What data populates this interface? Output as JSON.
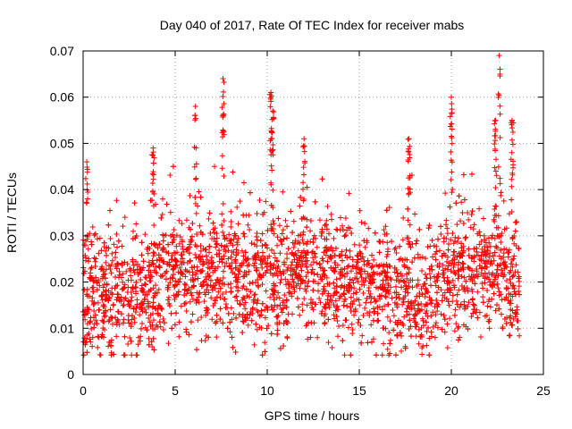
{
  "chart_data": {
    "type": "scatter",
    "title": "Day 040 of 2017, Rate Of TEC Index for receiver mabs",
    "xlabel": "GPS time / hours",
    "ylabel": "ROTI / TECUs",
    "xlim": [
      0,
      25
    ],
    "ylim": [
      0,
      0.07
    ],
    "xticks": [
      "0",
      "5",
      "10",
      "15",
      "20",
      "25"
    ],
    "xtick_values": [
      0,
      5,
      10,
      15,
      20,
      25
    ],
    "yticks": [
      "0",
      "0.01",
      "0.02",
      "0.03",
      "0.04",
      "0.05",
      "0.06",
      "0.07"
    ],
    "ytick_values": [
      0,
      0.01,
      0.02,
      0.03,
      0.04,
      0.05,
      0.06,
      0.07
    ],
    "grid": true,
    "marker": "+",
    "color": "#ff0000",
    "x_coverage": [
      0,
      23.7
    ],
    "typical_range": [
      0.007,
      0.035
    ],
    "trend": [
      {
        "x": 0.5,
        "y": 0.017
      },
      {
        "x": 2.5,
        "y": 0.016
      },
      {
        "x": 4.5,
        "y": 0.022
      },
      {
        "x": 6.5,
        "y": 0.021
      },
      {
        "x": 8.5,
        "y": 0.022
      },
      {
        "x": 10.5,
        "y": 0.02
      },
      {
        "x": 12.5,
        "y": 0.023
      },
      {
        "x": 14.5,
        "y": 0.02
      },
      {
        "x": 16.5,
        "y": 0.018
      },
      {
        "x": 18.5,
        "y": 0.017
      },
      {
        "x": 20.5,
        "y": 0.021
      },
      {
        "x": 22.5,
        "y": 0.024
      },
      {
        "x": 23.5,
        "y": 0.018
      }
    ],
    "peaks": [
      {
        "x": 0.2,
        "y": 0.046
      },
      {
        "x": 3.8,
        "y": 0.049
      },
      {
        "x": 6.1,
        "y": 0.058
      },
      {
        "x": 7.6,
        "y": 0.064
      },
      {
        "x": 10.2,
        "y": 0.061
      },
      {
        "x": 10.3,
        "y": 0.057
      },
      {
        "x": 12.0,
        "y": 0.051
      },
      {
        "x": 17.7,
        "y": 0.051
      },
      {
        "x": 20.0,
        "y": 0.06
      },
      {
        "x": 22.4,
        "y": 0.055
      },
      {
        "x": 22.6,
        "y": 0.069
      },
      {
        "x": 23.3,
        "y": 0.055
      }
    ]
  }
}
